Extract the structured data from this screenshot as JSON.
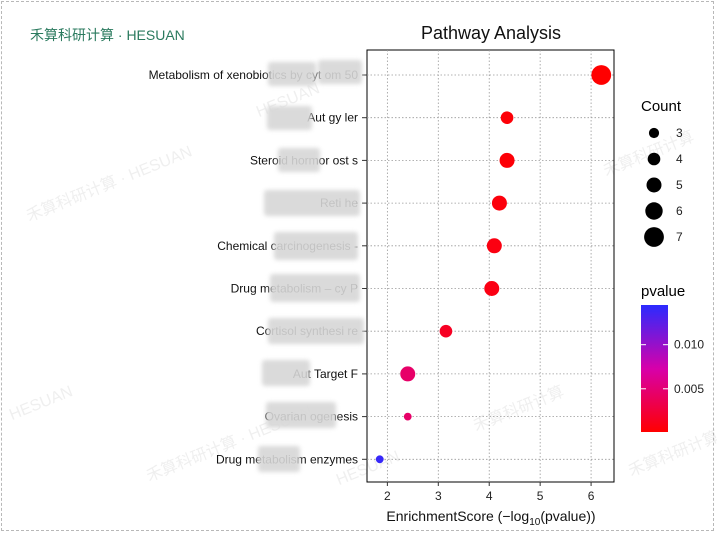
{
  "brand": "禾算科研计算 · HESUAN",
  "watermarks": [
    "禾算科研计算 · HESUAN",
    "HESUAN",
    "禾算科研计算",
    "HESUAN",
    "禾算科研计算 · HESUAN",
    "禾算科研计算",
    "HESUAN",
    "禾算科研计算"
  ],
  "chart_data": {
    "type": "scatter",
    "title": "Pathway Analysis",
    "xlabel_prefix": "EnrichmentScore (−log",
    "xlabel_sub": "10",
    "xlabel_suffix": "(pvalue))",
    "xlim": [
      1.6,
      6.45
    ],
    "xticks": [
      2,
      3,
      4,
      5,
      6
    ],
    "grid": true,
    "categories": [
      "Metabolism of xenobiotics by cyt          om         50",
      "Aut        gy        ler",
      "Steroid hormor        ost        s",
      "Reti       he",
      "Chemical carcinogenesis -",
      "Drug metabolism – cy                   P",
      "Cortisol synthesi                   re",
      "Aut              Target F",
      "Ovarian                 ogenesis",
      "Drug metabolism            enzymes"
    ],
    "points": [
      {
        "x": 6.2,
        "count": 7,
        "pvalue": 0.0001
      },
      {
        "x": 4.35,
        "count": 4,
        "pvalue": 0.0004
      },
      {
        "x": 4.35,
        "count": 5,
        "pvalue": 0.0004
      },
      {
        "x": 4.2,
        "count": 5,
        "pvalue": 0.0006
      },
      {
        "x": 4.1,
        "count": 5,
        "pvalue": 0.0008
      },
      {
        "x": 4.05,
        "count": 5,
        "pvalue": 0.0009
      },
      {
        "x": 3.15,
        "count": 4,
        "pvalue": 0.0016
      },
      {
        "x": 2.4,
        "count": 5,
        "pvalue": 0.0045
      },
      {
        "x": 2.4,
        "count": 2,
        "pvalue": 0.0045
      },
      {
        "x": 1.85,
        "count": 2,
        "pvalue": 0.014
      }
    ],
    "size_legend": {
      "title": "Count",
      "values": [
        3,
        4,
        5,
        6,
        7
      ]
    },
    "color_legend": {
      "title": "pvalue",
      "ticks": [
        0.01,
        0.005
      ],
      "tick_labels": [
        "0.010",
        "0.005"
      ],
      "range": [
        0.0001,
        0.0145
      ],
      "low_color": "#ff0000",
      "high_color": "#2b2bff"
    }
  }
}
